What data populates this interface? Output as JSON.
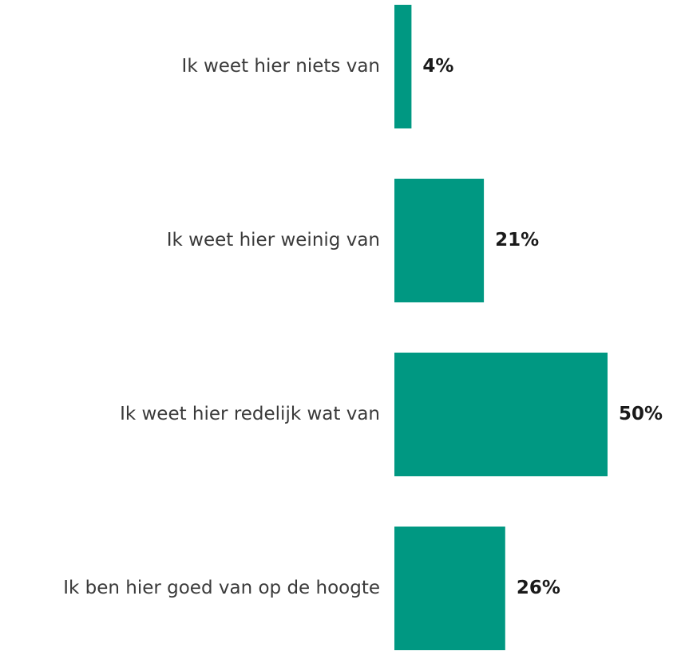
{
  "chart_data": {
    "type": "bar",
    "orientation": "horizontal",
    "categories": [
      "Ik weet hier niets van",
      "Ik weet hier weinig van",
      "Ik weet hier redelijk wat van",
      "Ik ben hier goed van op de hoogte"
    ],
    "values": [
      4,
      21,
      50,
      26
    ],
    "value_labels": [
      "4%",
      "21%",
      "50%",
      "26%"
    ],
    "unit": "%",
    "xlim": [
      0,
      50
    ],
    "grid": false,
    "legend": "none",
    "bar_color": "#009882"
  }
}
